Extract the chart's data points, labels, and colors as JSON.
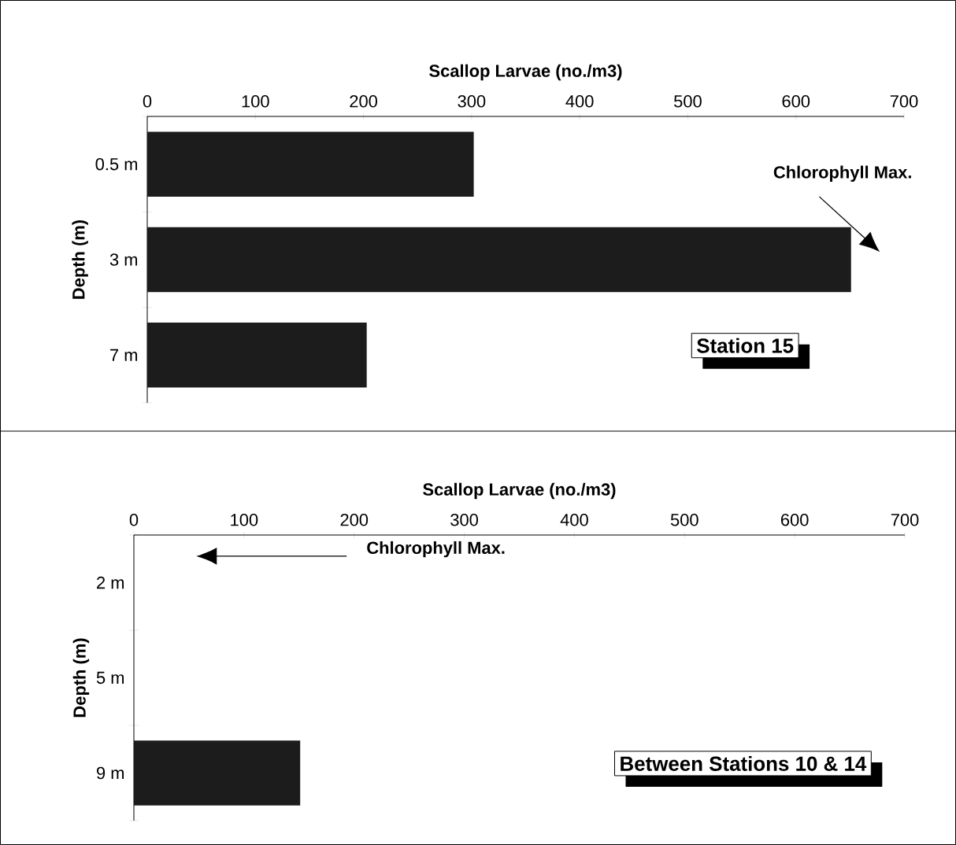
{
  "chart_data": [
    {
      "type": "bar",
      "orientation": "horizontal",
      "xlabel": "Scallop Larvae (no./m3)",
      "ylabel": "Depth (m)",
      "categories": [
        "0.5 m",
        "3 m",
        "7 m"
      ],
      "values": [
        302,
        651,
        203
      ],
      "color": "#1c1c1c",
      "xlim": [
        0,
        700
      ],
      "xticks": [
        0,
        100,
        200,
        300,
        400,
        500,
        600,
        700
      ],
      "annotations": [
        "Chlorophyll Max.",
        "Station 15"
      ]
    },
    {
      "type": "bar",
      "orientation": "horizontal",
      "xlabel": "Scallop Larvae (no./m3)",
      "ylabel": "Depth (m)",
      "categories": [
        "2 m",
        "5 m",
        "9 m"
      ],
      "values": [
        null,
        null,
        151
      ],
      "color": "#1c1c1c",
      "xlim": [
        0,
        700
      ],
      "xticks": [
        0,
        100,
        200,
        300,
        400,
        500,
        600,
        700
      ],
      "annotations": [
        "Chlorophyll Max.",
        "Between Stations 10 & 14"
      ]
    }
  ]
}
